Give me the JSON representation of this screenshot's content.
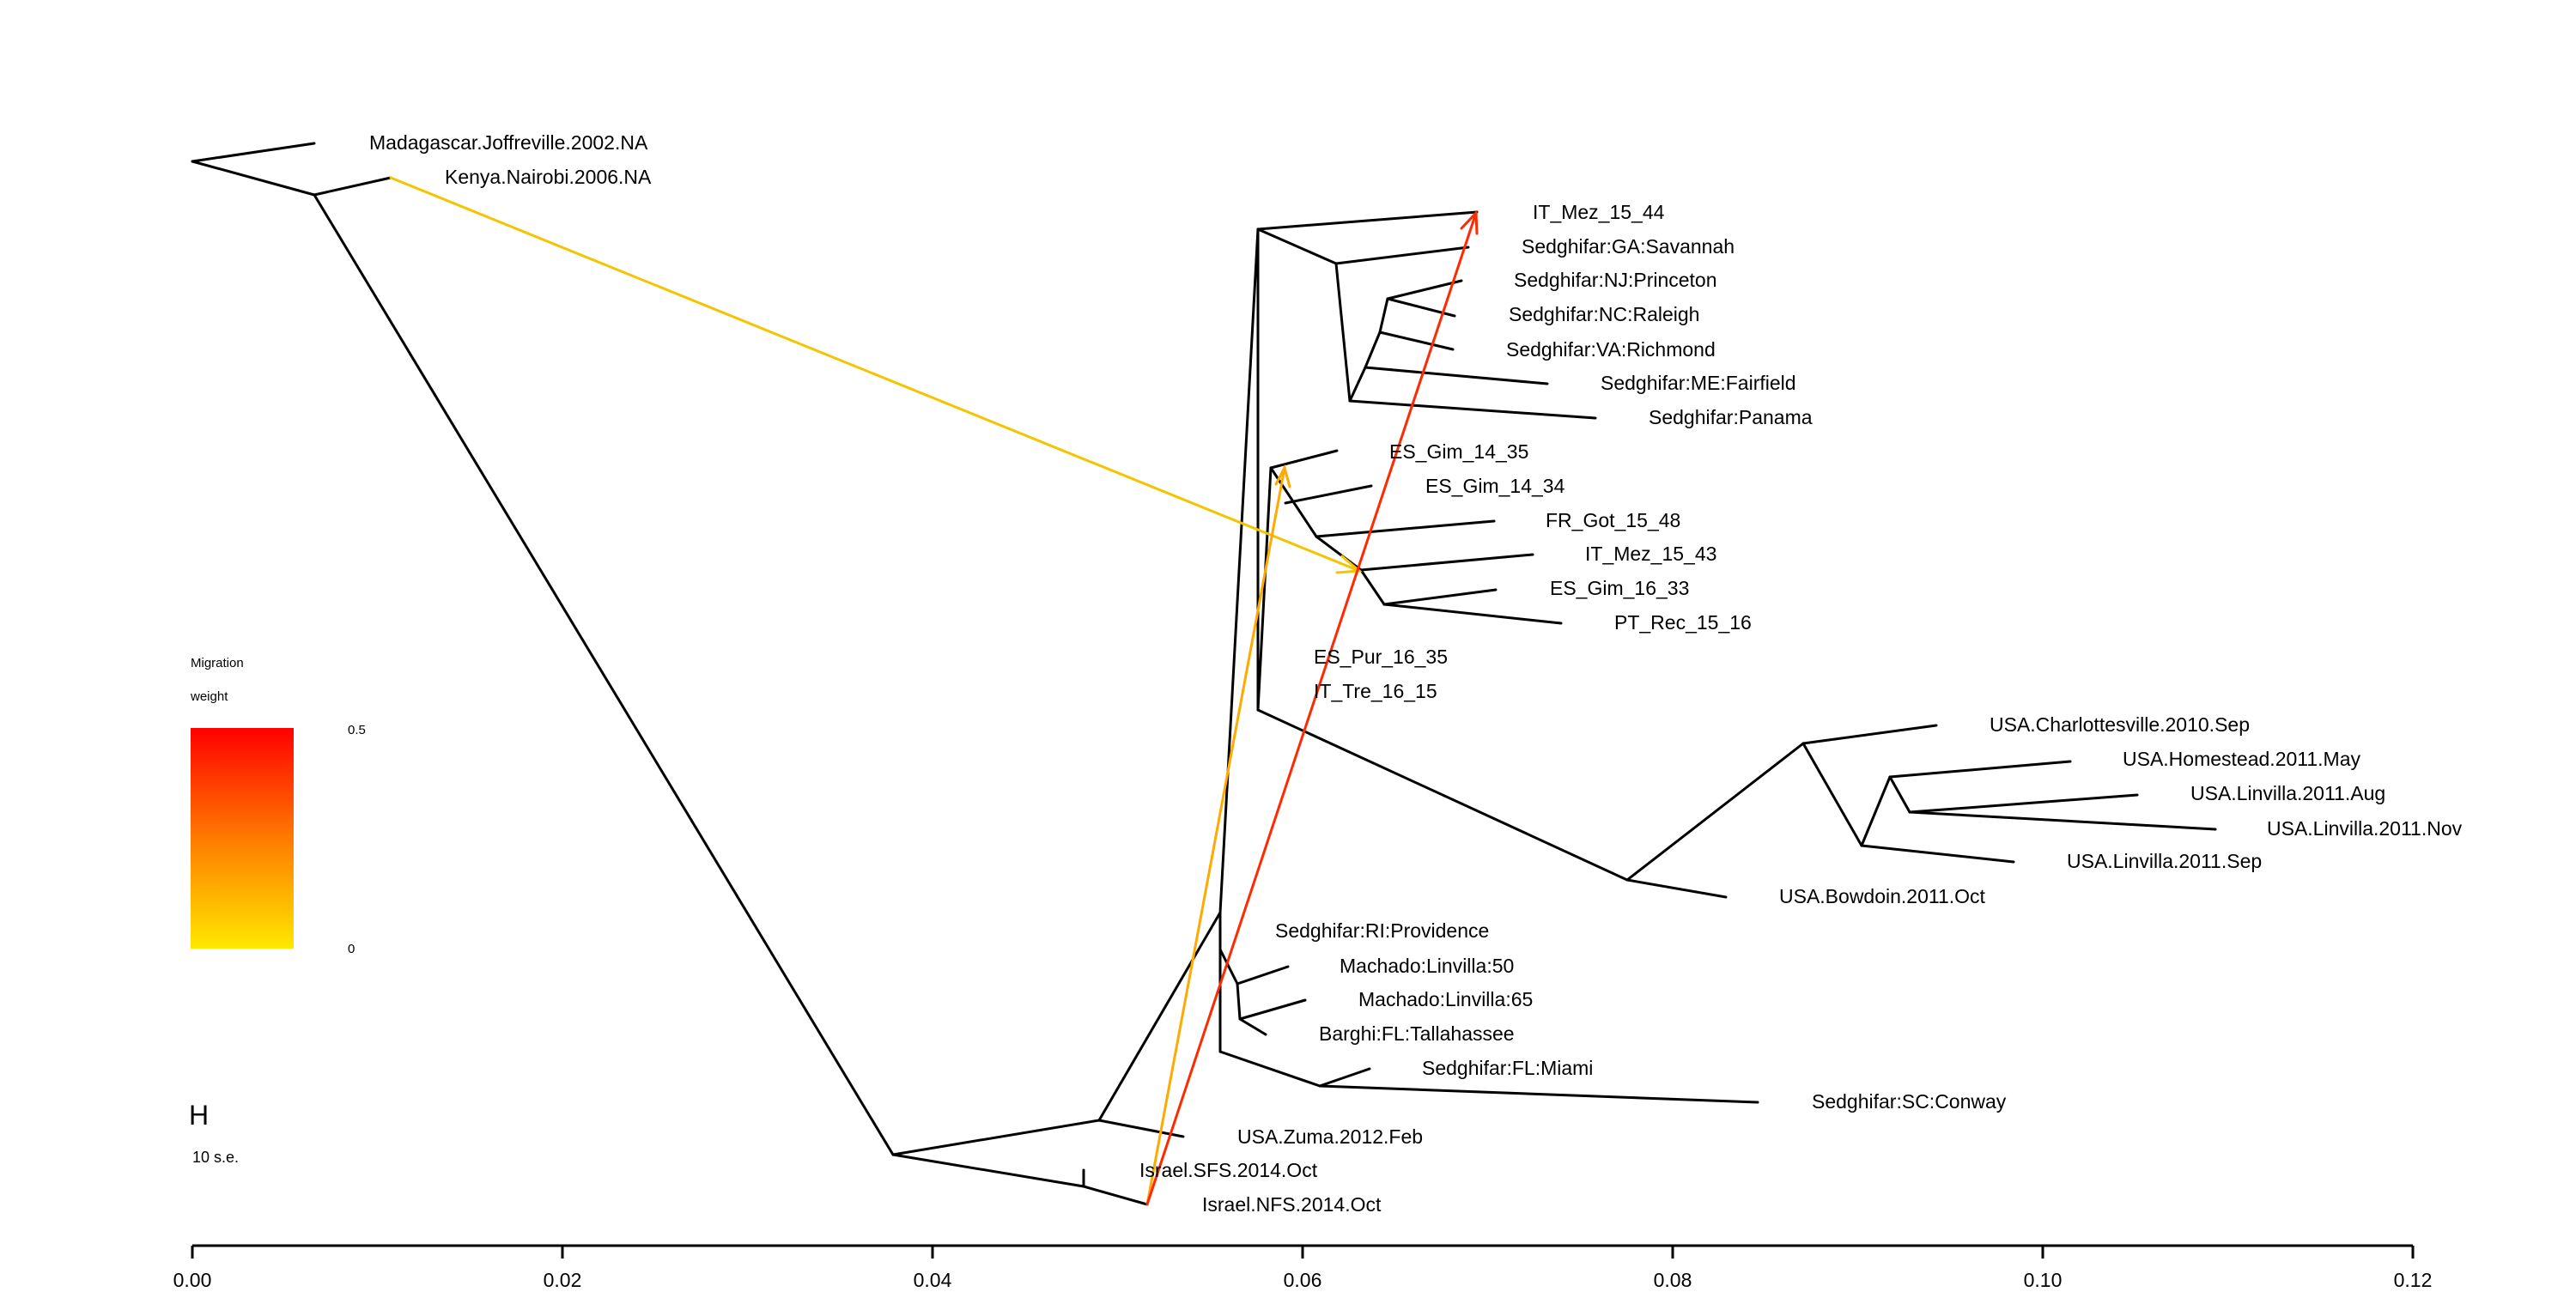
{
  "tips": [
    "Madagascar.Joffreville.2002.NA",
    "Kenya.Nairobi.2006.NA",
    "IT_Mez_15_44",
    "Sedghifar:GA:Savannah",
    "Sedghifar:NJ:Princeton",
    "Sedghifar:NC:Raleigh",
    "Sedghifar:VA:Richmond",
    "Sedghifar:ME:Fairfield",
    "Sedghifar:Panama",
    "ES_Gim_14_35",
    "ES_Gim_14_34",
    "FR_Got_15_48",
    "IT_Mez_15_43",
    "ES_Gim_16_33",
    "PT_Rec_15_16",
    "ES_Pur_16_35",
    "IT_Tre_16_15",
    "USA.Charlottesville.2010.Sep",
    "USA.Homestead.2011.May",
    "USA.Linvilla.2011.Aug",
    "USA.Linvilla.2011.Nov",
    "USA.Linvilla.2011.Sep",
    "USA.Bowdoin.2011.Oct",
    "Sedghifar:RI:Providence",
    "Machado:Linvilla:50",
    "Machado:Linvilla:65",
    "Barghi:FL:Tallahassee",
    "Sedghifar:FL:Miami",
    "Sedghifar:SC:Conway",
    "USA.Zuma.2012.Feb",
    "Israel.SFS.2014.Oct",
    "Israel.NFS.2014.Oct"
  ],
  "migration_edges": [
    {
      "from": "Kenya.Nairobi.2006.NA",
      "to": "ES/FR/IT/PT clade",
      "weight": 0.02,
      "color": "#f5c400"
    },
    {
      "from": "Israel.NFS.2014.Oct",
      "to": "ES_Gim_14_35 clade",
      "weight": 0.05,
      "color": "#ffaa00"
    },
    {
      "from": "Israel.NFS.2014.Oct",
      "to": "IT_Mez_15_44",
      "weight": 0.45,
      "color": "#ff2a00"
    }
  ],
  "legend": {
    "title_line1": "Migration",
    "title_line2": "weight",
    "max_label": "0.5",
    "min_label": "0",
    "color_max": "#ff0000",
    "color_min": "#ffe800"
  },
  "scale_bar": {
    "symbol": "H",
    "label": "10 s.e."
  },
  "axis": {
    "ticks": [
      "0.00",
      "0.02",
      "0.04",
      "0.06",
      "0.08",
      "0.10",
      "0.12"
    ],
    "range": [
      0,
      0.12
    ]
  }
}
